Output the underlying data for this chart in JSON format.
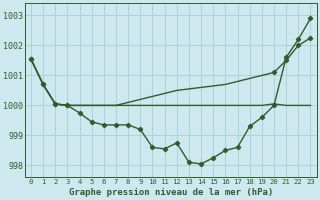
{
  "x": [
    0,
    1,
    2,
    3,
    4,
    5,
    6,
    7,
    8,
    9,
    10,
    11,
    12,
    13,
    14,
    15,
    16,
    17,
    18,
    19,
    20,
    21,
    22,
    23
  ],
  "line1_flat": [
    1001.55,
    1000.7,
    1000.05,
    1000.0,
    1000.0,
    1000.0,
    1000.0,
    1000.0,
    1000.0,
    1000.0,
    1000.0,
    1000.0,
    1000.0,
    1000.0,
    1000.0,
    1000.0,
    1000.0,
    1000.0,
    1000.0,
    1000.0,
    1000.05,
    1000.0,
    1000.0,
    1000.0
  ],
  "line2_mid": [
    1001.55,
    1000.7,
    1000.05,
    1000.0,
    1000.0,
    1000.0,
    1000.0,
    1000.0,
    1000.1,
    1000.2,
    1000.3,
    1000.4,
    1000.5,
    1000.55,
    1000.6,
    1000.65,
    1000.7,
    1000.8,
    1000.9,
    1001.0,
    1001.1,
    1001.5,
    1002.0,
    1002.25
  ],
  "line3_deep": [
    1001.55,
    1000.7,
    1000.05,
    1000.0,
    999.75,
    999.45,
    999.35,
    999.35,
    999.35,
    999.2,
    998.6,
    998.55,
    998.75,
    998.1,
    998.05,
    998.25,
    998.5,
    998.6,
    999.3,
    999.6,
    1000.0,
    1001.6,
    1002.2,
    1002.9
  ],
  "bg_color": "#cde8ef",
  "grid_color": "#a8cdd6",
  "line_color": "#2d5e2d",
  "xlabel": "Graphe pression niveau de la mer (hPa)",
  "ylim": [
    997.6,
    1003.4
  ],
  "yticks": [
    998,
    999,
    1000,
    1001,
    1002,
    1003
  ],
  "xticks": [
    0,
    1,
    2,
    3,
    4,
    5,
    6,
    7,
    8,
    9,
    10,
    11,
    12,
    13,
    14,
    15,
    16,
    17,
    18,
    19,
    20,
    21,
    22,
    23
  ]
}
